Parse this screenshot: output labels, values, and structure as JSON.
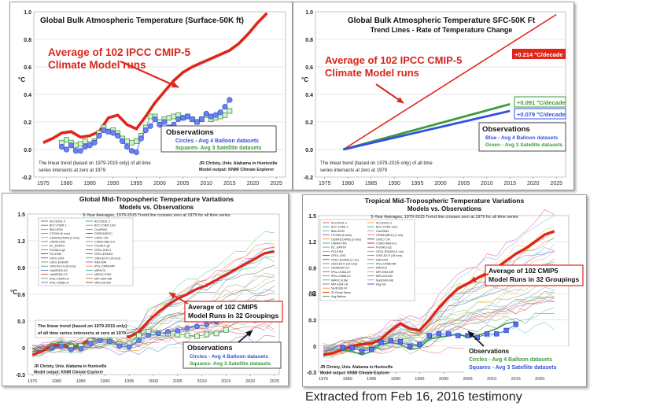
{
  "footer": "Extracted from Feb 16, 2016 testimony",
  "colors": {
    "model": "#e0261b",
    "obs_blue": "#3350e0",
    "obs_green": "#3c9a3c",
    "red_text": "#d8261b",
    "box_border": "#222222"
  },
  "chart_data": [
    {
      "type": "line",
      "title": "Global Bulk Atmospheric Temperature (Surface-50K ft)",
      "ylabel": "°C",
      "xlim": [
        1973,
        2027
      ],
      "ylim": [
        -0.2,
        1.0
      ],
      "xticks": [
        1975,
        1980,
        1985,
        1990,
        1995,
        2000,
        2005,
        2010,
        2015,
        2020,
        2025
      ],
      "yticks": [
        "-0.2",
        "0.0",
        "0.2",
        "0.4",
        "0.6",
        "0.8",
        "1.0"
      ],
      "callout": [
        "Average of 102 IPCC CMIP-5",
        "Climate Model runs"
      ],
      "obs_box": {
        "title": "Observations",
        "line1": "Circles - Avg 4 Balloon datasets",
        "line2": "Squares- Avg 3 Satellite datasets"
      },
      "note": [
        "The linear trend (based on 1979-2015 only) of all time",
        "series intersects at zero at 1979"
      ],
      "credit": [
        "JR Christy, Univ. Alabama in Huntsville",
        "Model output: KNMI Climate Explorer"
      ],
      "series": [
        {
          "name": "Model average",
          "x": [
            1975,
            1977,
            1979,
            1981,
            1983,
            1985,
            1987,
            1989,
            1991,
            1993,
            1995,
            1997,
            1999,
            2001,
            2003,
            2005,
            2007,
            2009,
            2011,
            2013,
            2015,
            2017,
            2019,
            2021,
            2023
          ],
          "values": [
            0.05,
            0.08,
            0.12,
            0.13,
            0.09,
            0.1,
            0.13,
            0.23,
            0.25,
            0.18,
            0.15,
            0.24,
            0.34,
            0.42,
            0.5,
            0.56,
            0.6,
            0.63,
            0.66,
            0.69,
            0.72,
            0.77,
            0.84,
            0.92,
            0.99
          ]
        },
        {
          "name": "Balloon average (circles)",
          "x": [
            1979,
            1980,
            1981,
            1982,
            1983,
            1984,
            1985,
            1986,
            1987,
            1988,
            1989,
            1990,
            1991,
            1992,
            1993,
            1994,
            1995,
            1996,
            1997,
            1998,
            1999,
            2000,
            2001,
            2002,
            2003,
            2004,
            2005,
            2006,
            2007,
            2008,
            2009,
            2010,
            2011,
            2012,
            2013,
            2014,
            2015
          ],
          "values": [
            0.02,
            0.0,
            0.03,
            -0.01,
            -0.01,
            0.02,
            0.03,
            0.05,
            0.1,
            0.14,
            0.13,
            0.12,
            0.1,
            0.06,
            0.02,
            -0.01,
            -0.02,
            0.08,
            0.14,
            0.17,
            0.22,
            0.18,
            0.2,
            0.16,
            0.18,
            0.22,
            0.23,
            0.24,
            0.22,
            0.2,
            0.22,
            0.26,
            0.24,
            0.25,
            0.27,
            0.31,
            0.36
          ]
        },
        {
          "name": "Satellite average (squares)",
          "x": [
            1979,
            1980,
            1981,
            1982,
            1983,
            1984,
            1985,
            1986,
            1987,
            1988,
            1989,
            1990,
            1991,
            1992,
            1993,
            1994,
            1995,
            1996,
            1997,
            1998,
            1999,
            2000,
            2001,
            2002,
            2003,
            2004,
            2005,
            2006,
            2007,
            2008,
            2009,
            2010,
            2011,
            2012,
            2013,
            2014,
            2015
          ],
          "values": [
            0.05,
            0.07,
            0.05,
            0.03,
            0.04,
            0.06,
            0.04,
            0.06,
            0.12,
            0.16,
            0.13,
            0.14,
            0.12,
            0.08,
            0.06,
            0.05,
            0.06,
            0.1,
            0.16,
            0.24,
            0.24,
            0.2,
            0.22,
            0.23,
            0.24,
            0.25,
            0.23,
            0.24,
            0.22,
            0.2,
            0.22,
            0.25,
            0.22,
            0.23,
            0.24,
            0.25,
            0.28
          ]
        }
      ]
    },
    {
      "type": "line",
      "title": "Global Bulk Atmospheric Temperature SFC-50K  Ft",
      "subtitle": "Trend Lines - Rate of Temperature Change",
      "ylabel": "°C",
      "xlim": [
        1973,
        2027
      ],
      "ylim": [
        -0.2,
        1.0
      ],
      "xticks": [
        1975,
        1980,
        1985,
        1990,
        1995,
        2000,
        2005,
        2010,
        2015,
        2020,
        2025
      ],
      "yticks": [
        "-0.2",
        "0.0",
        "0.2",
        "0.4",
        "0.6",
        "0.8",
        "1.0"
      ],
      "callout": [
        "Average of 102 IPCC CMIP-5",
        "Climate Model runs"
      ],
      "rate_labels": [
        "+0.214 °C/decade",
        "+0.091 °C/decade",
        "+0.079 °C/decade"
      ],
      "obs_box": {
        "title": "Observations",
        "line1": "Blue - Avg 4 Balloon datasets",
        "line2": "Green - Avg 3 Satellite datasets"
      },
      "note": [
        "The linear trend (based on 1979-2015 only) of all time",
        "series intersects at zero at 1979"
      ],
      "series": [
        {
          "name": "Model trend",
          "x": [
            1979,
            2025
          ],
          "values": [
            0.0,
            0.98
          ]
        },
        {
          "name": "Satellite trend",
          "x": [
            1979,
            2015
          ],
          "values": [
            0.0,
            0.33
          ]
        },
        {
          "name": "Balloon trend",
          "x": [
            1979,
            2015
          ],
          "values": [
            0.0,
            0.28
          ]
        }
      ]
    },
    {
      "type": "line",
      "title": "Global Mid-Tropospheric Temperature Variations",
      "subtitle": "Models vs. Observations",
      "caption": "5-Year Averages, 1979-2015 Trend line crosses zero at 1979 for all time series",
      "ylabel": "°C",
      "xlim": [
        1974,
        2026
      ],
      "ylim": [
        -0.3,
        1.5
      ],
      "xticks": [
        1975,
        1980,
        1985,
        1990,
        1995,
        2000,
        2005,
        2010,
        2015,
        2020,
        2025
      ],
      "yticks": [
        "-0.3",
        "0",
        "0.3",
        "0.6",
        "0.9",
        "1.2",
        "1.5"
      ],
      "legend_left": [
        "ACCESS1.0",
        "BCC-CSM1.1",
        "BNU-ESM",
        "CCSM4 (6 runs)",
        "CESM1(CAM5) (3 runs)",
        "CNRM-CM5",
        "EC_EARTH",
        "FGOALS-g2",
        "FIO-ESM",
        "GFDL-CM3",
        "GFDL-ESM2M",
        "GISS-E2-H (16 runs)",
        "HadGEM2-AO",
        "HadGEM2-CC",
        "IPSL-CM5A-LR",
        "IPSL-CM5B-LR"
      ],
      "legend_right": [
        "ACCESS1.3",
        "BCC-CSM1.1(m)",
        "CanESM2",
        "CESM1(BGC)",
        "CMCC-CM",
        "CSIRO-Mk3-6-0",
        "FGOALS-g2",
        "GFDL-CM2.1",
        "GFDL-ESM2G",
        "GISS-E2-R (18 runs)",
        "INM-CM4",
        "IPSL-CM5A-MR",
        "MIROC5",
        "MIROC-ESM",
        "MPI-ESM-MR",
        "MRI-CGCM3"
      ],
      "callout": [
        "Average of 102 CMIP5",
        "Model Runs in 32 Groupings"
      ],
      "obs_box": {
        "title": "Observations",
        "line1": "Circles - Avg 4 Balloon datasets",
        "line2": "Squares- Avg 3 Satellite datasets"
      },
      "note": [
        "The linear trend (based on 1979-2015 only)",
        "of all time series intersects at zero at 1979"
      ],
      "credit": [
        "JR Christy, Univ. Alabama in Huntsville",
        "Model output: KNMI Climate Explorer"
      ],
      "series": [
        {
          "name": "Model average",
          "x": [
            1975,
            1977,
            1979,
            1981,
            1983,
            1985,
            1987,
            1989,
            1991,
            1993,
            1995,
            1997,
            1999,
            2001,
            2003,
            2005,
            2007,
            2009,
            2011,
            2013,
            2015,
            2017,
            2019,
            2021,
            2023,
            2025
          ],
          "values": [
            -0.08,
            -0.04,
            0.02,
            0.04,
            0.0,
            0.03,
            0.1,
            0.16,
            0.2,
            0.14,
            0.12,
            0.18,
            0.3,
            0.4,
            0.48,
            0.55,
            0.6,
            0.66,
            0.7,
            0.76,
            0.82,
            0.88,
            0.94,
            1.0,
            1.06,
            1.08
          ]
        },
        {
          "name": "Balloon average (circles)",
          "x": [
            1979,
            1981,
            1983,
            1985,
            1987,
            1989,
            1991,
            1993,
            1995,
            1997,
            1999,
            2001,
            2003,
            2005,
            2007,
            2009,
            2011,
            2013,
            2015
          ],
          "values": [
            0.0,
            0.02,
            -0.02,
            -0.01,
            0.05,
            0.08,
            0.07,
            0.02,
            0.01,
            0.08,
            0.14,
            0.16,
            0.18,
            0.19,
            0.22,
            0.24,
            0.26,
            0.29,
            0.33
          ]
        },
        {
          "name": "Satellite average (squares)",
          "x": [
            1979,
            1981,
            1983,
            1985,
            1987,
            1989,
            1991,
            1993,
            1995,
            1997,
            1999,
            2001,
            2003,
            2005,
            2007,
            2009,
            2011,
            2013,
            2015
          ],
          "values": [
            0.0,
            0.03,
            0.01,
            0.02,
            0.08,
            0.1,
            0.08,
            0.04,
            0.05,
            0.14,
            0.18,
            0.17,
            0.16,
            0.15,
            0.14,
            0.13,
            0.15,
            0.16,
            0.2
          ]
        }
      ]
    },
    {
      "type": "line",
      "title": "Tropical Mid-Tropospheric Temperature Variations",
      "subtitle": "Models vs. Observations",
      "caption": "5-Year Averages, 1979-2015 Trend line crosses zero at 1979 for all time series",
      "ylabel": "°C",
      "xlim": [
        1974,
        2026
      ],
      "ylim": [
        -0.3,
        1.5
      ],
      "xticks": [
        1975,
        1980,
        1985,
        1990,
        1995,
        2000,
        2005,
        2010,
        2015,
        2020
      ],
      "yticks": [
        "-0.3",
        "0",
        "0.3",
        "0.6",
        "0.9",
        "1.2",
        "1.5"
      ],
      "legend_left": [
        "ACCESS1.0",
        "BCC-CSM1.1",
        "BNU-ESM",
        "CCSM4 (6 runs)",
        "CESM1(CAM5) (3 runs)",
        "CNRM-CM5",
        "EC_EARTH",
        "FIO-ESM",
        "GFDL-CM3",
        "GFDL-ESM2G (1 run)",
        "GISS-E2-H (16 runs)",
        "HadGEM2-CC",
        "IPSL-CM5A-LR",
        "IPSL-CM5B-LR",
        "MIROC-ESM",
        "MPI-ESM-LR",
        "NorESM1-M",
        "32 Group Mean",
        "Avg Balloon"
      ],
      "legend_right": [
        "ACCESS1.3",
        "BCC-CSM1.1(m)",
        "CanESM2",
        "CESM1(BGC) (1 run)",
        "CMCC-CM",
        "CSIRO-Mk3-6-0",
        "FGOALS-g2",
        "GFDL-ESM2M (1 run)",
        "GISS-E2-R (18 runs)",
        "INM-CM4",
        "IPSL-CM5A-MR",
        "MIROC5",
        "MPI-ESM-MR",
        "MRI-CGCM3",
        "NorESM1-ME",
        "Avg Sat"
      ],
      "callout": [
        "Average of 102 CMIP5",
        "Model Runs in 32 Groupings"
      ],
      "obs_box": {
        "title": "Observations",
        "line1": "Circles - Avg 4 Balloon datasets",
        "line2": "Squares - Avg 3 Satellite datasets"
      },
      "credit": [
        "JR Christy, Univ. Alabama in Huntsville",
        "Model output: KNMI Climate Explorer"
      ],
      "series": [
        {
          "name": "Model average",
          "x": [
            1975,
            1977,
            1979,
            1981,
            1983,
            1985,
            1987,
            1989,
            1991,
            1993,
            1995,
            1997,
            1999,
            2001,
            2003,
            2005,
            2007,
            2009,
            2011,
            2013,
            2015,
            2017,
            2019,
            2021,
            2023
          ],
          "values": [
            -0.1,
            -0.08,
            -0.04,
            0.0,
            0.02,
            0.03,
            0.08,
            0.18,
            0.26,
            0.2,
            0.18,
            0.3,
            0.44,
            0.56,
            0.66,
            0.72,
            0.78,
            0.84,
            0.9,
            0.98,
            1.06,
            1.12,
            1.2,
            1.28,
            1.32
          ]
        },
        {
          "name": "Balloon average (circles)",
          "x": [
            1979,
            1981,
            1983,
            1985,
            1987,
            1989,
            1991,
            1993,
            1995,
            1997,
            1999,
            2001,
            2003,
            2005,
            2007,
            2009,
            2011,
            2013,
            2015
          ],
          "values": [
            -0.05,
            -0.06,
            -0.1,
            -0.06,
            0.02,
            0.04,
            0.02,
            -0.04,
            -0.02,
            0.08,
            0.1,
            0.12,
            0.14,
            0.1,
            0.12,
            0.16,
            0.2,
            0.26,
            0.28
          ]
        },
        {
          "name": "Satellite average (squares)",
          "x": [
            1979,
            1981,
            1983,
            1985,
            1987,
            1989,
            1991,
            1993,
            1995,
            1997,
            1999,
            2001,
            2003,
            2005,
            2007,
            2009,
            2011,
            2013,
            2015
          ],
          "values": [
            -0.02,
            -0.02,
            -0.06,
            -0.04,
            0.04,
            0.06,
            0.05,
            0.0,
            0.02,
            0.12,
            0.14,
            0.14,
            0.12,
            0.12,
            0.1,
            0.14,
            0.14,
            0.18,
            0.25
          ]
        }
      ]
    }
  ]
}
